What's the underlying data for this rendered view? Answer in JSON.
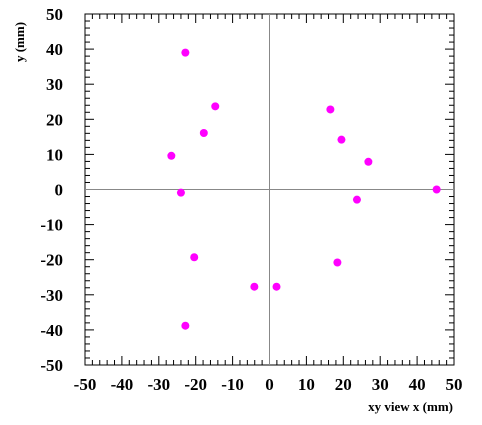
{
  "chart_data": {
    "type": "scatter",
    "xlabel": "xy view  x (mm)",
    "ylabel": "y (mm)",
    "xlim": [
      -50,
      50
    ],
    "ylim": [
      -50,
      50
    ],
    "x_ticks": [
      -50,
      -40,
      -30,
      -20,
      -10,
      0,
      10,
      20,
      30,
      40,
      50
    ],
    "y_ticks": [
      -50,
      -40,
      -30,
      -20,
      -10,
      0,
      10,
      20,
      30,
      40,
      50
    ],
    "crosshair_at_zero": true,
    "grid": false,
    "marker_color": "#ff00ff",
    "points": [
      {
        "x": -22.8,
        "y": 39.0
      },
      {
        "x": -14.7,
        "y": 23.7
      },
      {
        "x": -17.8,
        "y": 16.1
      },
      {
        "x": -26.6,
        "y": 9.6
      },
      {
        "x": -24.0,
        "y": -0.9
      },
      {
        "x": -20.4,
        "y": -19.3
      },
      {
        "x": -22.8,
        "y": -38.8
      },
      {
        "x": -4.1,
        "y": -27.7
      },
      {
        "x": 1.9,
        "y": -27.7
      },
      {
        "x": 16.5,
        "y": 22.8
      },
      {
        "x": 19.5,
        "y": 14.2
      },
      {
        "x": 26.8,
        "y": 7.9
      },
      {
        "x": 45.3,
        "y": 0.0
      },
      {
        "x": 23.7,
        "y": -2.9
      },
      {
        "x": 18.4,
        "y": -20.8
      }
    ]
  }
}
